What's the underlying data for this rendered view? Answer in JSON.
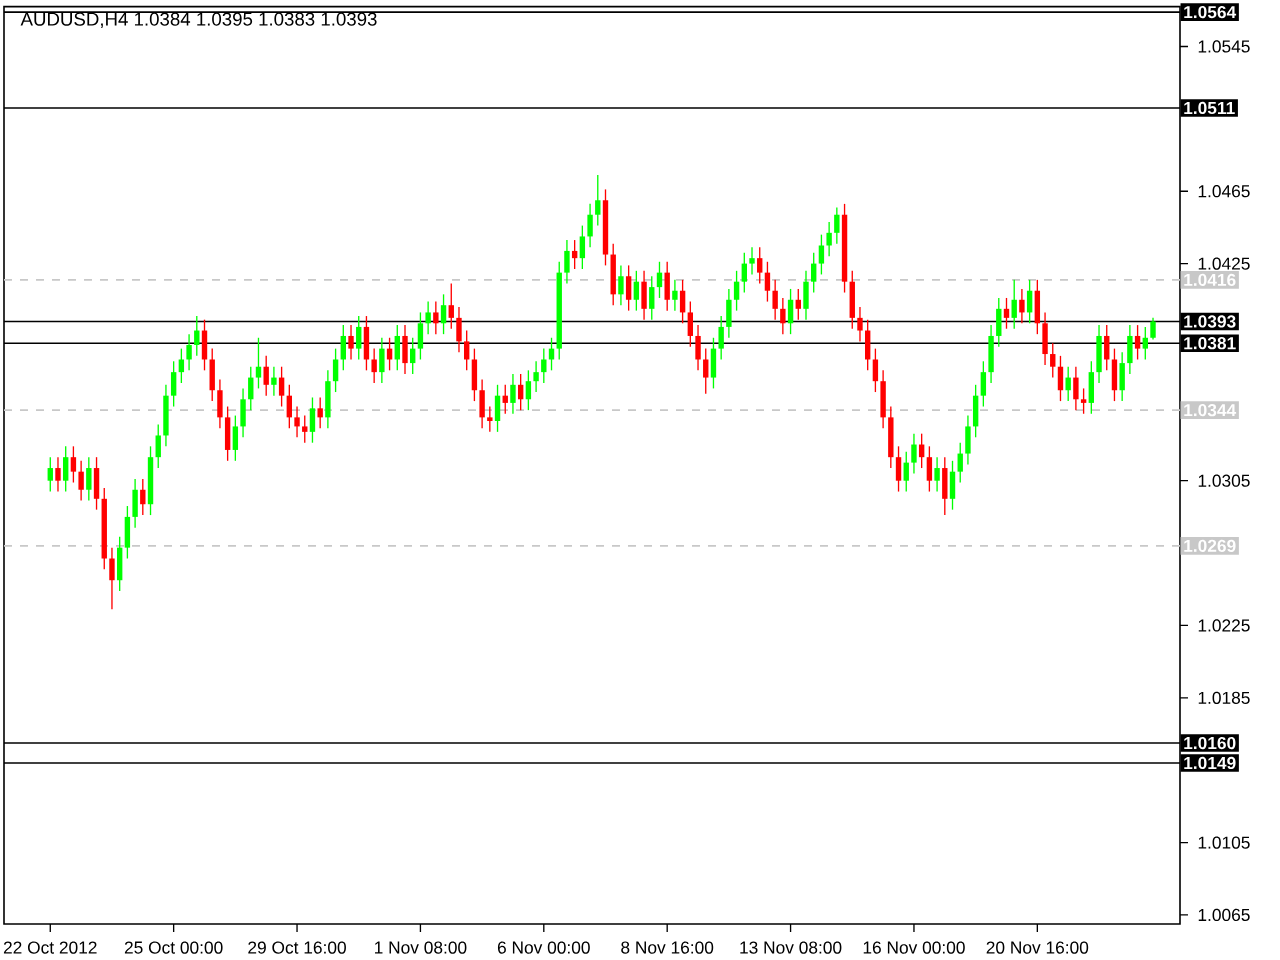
{
  "chart_data": {
    "type": "candlestick",
    "title": "AUDUSD,H4  1.0384 1.0395 1.0383 1.0393",
    "categories": [
      "22 Oct 2012",
      null,
      null,
      null,
      null,
      null,
      null,
      null,
      null,
      null,
      null,
      null,
      null,
      null,
      null,
      null,
      "25 Oct 00:00",
      null,
      null,
      null,
      null,
      null,
      null,
      null,
      null,
      null,
      null,
      null,
      null,
      null,
      null,
      null,
      "29 Oct 16:00",
      null,
      null,
      null,
      null,
      null,
      null,
      null,
      null,
      null,
      null,
      null,
      null,
      null,
      null,
      null,
      "1 Nov 08:00",
      null,
      null,
      null,
      null,
      null,
      null,
      null,
      null,
      null,
      null,
      null,
      null,
      null,
      null,
      null,
      "6 Nov 00:00",
      null,
      null,
      null,
      null,
      null,
      null,
      null,
      null,
      null,
      null,
      null,
      null,
      null,
      null,
      null,
      "8 Nov 16:00",
      null,
      null,
      null,
      null,
      null,
      null,
      null,
      null,
      null,
      null,
      null,
      null,
      null,
      null,
      null,
      "13 Nov 08:00",
      null,
      null,
      null,
      null,
      null,
      null,
      null,
      null,
      null,
      null,
      null,
      null,
      null,
      null,
      null,
      "16 Nov 00:00",
      null,
      null,
      null,
      null,
      null,
      null,
      null,
      null,
      null,
      null,
      null,
      null,
      null,
      null,
      null,
      "20 Nov 16:00",
      null,
      null,
      null,
      null,
      null,
      null,
      null,
      null,
      null,
      null,
      null,
      null,
      null,
      null,
      null
    ],
    "ohlc": [
      [
        1.0305,
        1.0318,
        1.0299,
        1.0312
      ],
      [
        1.0312,
        1.0318,
        1.0299,
        1.0305
      ],
      [
        1.0305,
        1.0324,
        1.0299,
        1.0318
      ],
      [
        1.0318,
        1.0324,
        1.0304,
        1.031
      ],
      [
        1.031,
        1.0316,
        1.0294,
        1.03
      ],
      [
        1.03,
        1.0318,
        1.0294,
        1.0312
      ],
      [
        1.0312,
        1.0318,
        1.0289,
        1.0295
      ],
      [
        1.0295,
        1.0301,
        1.0256,
        1.0262
      ],
      [
        1.0262,
        1.0268,
        1.0234,
        1.025
      ],
      [
        1.025,
        1.0274,
        1.0244,
        1.0268
      ],
      [
        1.0268,
        1.0291,
        1.0262,
        1.0285
      ],
      [
        1.0285,
        1.0306,
        1.0279,
        1.03
      ],
      [
        1.03,
        1.0306,
        1.0286,
        1.0292
      ],
      [
        1.0292,
        1.0324,
        1.0286,
        1.0318
      ],
      [
        1.0318,
        1.0336,
        1.0312,
        1.033
      ],
      [
        1.033,
        1.0358,
        1.0324,
        1.0352
      ],
      [
        1.0352,
        1.0371,
        1.0346,
        1.0365
      ],
      [
        1.0365,
        1.0378,
        1.0359,
        1.0372
      ],
      [
        1.0372,
        1.0386,
        1.0366,
        1.038
      ],
      [
        1.038,
        1.0396,
        1.0374,
        1.0388
      ],
      [
        1.0388,
        1.0394,
        1.0366,
        1.0372
      ],
      [
        1.0372,
        1.0378,
        1.0349,
        1.0355
      ],
      [
        1.0355,
        1.0361,
        1.0334,
        1.034
      ],
      [
        1.034,
        1.0346,
        1.0316,
        1.0322
      ],
      [
        1.0322,
        1.0341,
        1.0316,
        1.0335
      ],
      [
        1.0335,
        1.0356,
        1.0329,
        1.035
      ],
      [
        1.035,
        1.0368,
        1.0344,
        1.0362
      ],
      [
        1.0362,
        1.0384,
        1.0356,
        1.0368
      ],
      [
        1.0368,
        1.0374,
        1.0352,
        1.0358
      ],
      [
        1.0358,
        1.0368,
        1.0352,
        1.0362
      ],
      [
        1.0362,
        1.0368,
        1.0346,
        1.0352
      ],
      [
        1.0352,
        1.0358,
        1.0334,
        1.034
      ],
      [
        1.034,
        1.0346,
        1.0329,
        1.0335
      ],
      [
        1.0335,
        1.0341,
        1.0326,
        1.0332
      ],
      [
        1.0332,
        1.0351,
        1.0326,
        1.0345
      ],
      [
        1.0345,
        1.0351,
        1.0334,
        1.034
      ],
      [
        1.034,
        1.0366,
        1.0334,
        1.036
      ],
      [
        1.036,
        1.0378,
        1.0354,
        1.0372
      ],
      [
        1.0372,
        1.0391,
        1.0366,
        1.0385
      ],
      [
        1.0385,
        1.0391,
        1.0372,
        1.0378
      ],
      [
        1.0378,
        1.0396,
        1.0372,
        1.039
      ],
      [
        1.039,
        1.0396,
        1.0366,
        1.0372
      ],
      [
        1.0372,
        1.0378,
        1.0359,
        1.0365
      ],
      [
        1.0365,
        1.0384,
        1.0359,
        1.0378
      ],
      [
        1.0378,
        1.0384,
        1.0366,
        1.0372
      ],
      [
        1.0372,
        1.0391,
        1.0366,
        1.0385
      ],
      [
        1.0385,
        1.0391,
        1.0364,
        1.037
      ],
      [
        1.037,
        1.0384,
        1.0364,
        1.0378
      ],
      [
        1.0378,
        1.0398,
        1.0372,
        1.0392
      ],
      [
        1.0392,
        1.0404,
        1.0386,
        1.0398
      ],
      [
        1.0398,
        1.0404,
        1.0386,
        1.0392
      ],
      [
        1.0392,
        1.0408,
        1.0386,
        1.0402
      ],
      [
        1.0402,
        1.0414,
        1.0389,
        1.0395
      ],
      [
        1.0395,
        1.0401,
        1.0376,
        1.0382
      ],
      [
        1.0382,
        1.0388,
        1.0366,
        1.0372
      ],
      [
        1.0372,
        1.0378,
        1.0349,
        1.0355
      ],
      [
        1.0355,
        1.0361,
        1.0334,
        1.034
      ],
      [
        1.034,
        1.0346,
        1.0332,
        1.0338
      ],
      [
        1.0338,
        1.0358,
        1.0332,
        1.0352
      ],
      [
        1.0352,
        1.0358,
        1.0342,
        1.0348
      ],
      [
        1.0348,
        1.0364,
        1.0342,
        1.0358
      ],
      [
        1.0358,
        1.0364,
        1.0344,
        1.035
      ],
      [
        1.035,
        1.0366,
        1.0344,
        1.036
      ],
      [
        1.036,
        1.0371,
        1.0354,
        1.0365
      ],
      [
        1.0365,
        1.0378,
        1.0359,
        1.0372
      ],
      [
        1.0372,
        1.0384,
        1.0366,
        1.0378
      ],
      [
        1.0378,
        1.0426,
        1.0372,
        1.042
      ],
      [
        1.042,
        1.0438,
        1.0414,
        1.0432
      ],
      [
        1.0432,
        1.0438,
        1.0422,
        1.0428
      ],
      [
        1.0428,
        1.0446,
        1.0422,
        1.044
      ],
      [
        1.044,
        1.0458,
        1.0434,
        1.0452
      ],
      [
        1.0452,
        1.0474,
        1.0446,
        1.046
      ],
      [
        1.046,
        1.0466,
        1.0424,
        1.043
      ],
      [
        1.043,
        1.0436,
        1.0402,
        1.0408
      ],
      [
        1.0408,
        1.0424,
        1.0402,
        1.0418
      ],
      [
        1.0418,
        1.0424,
        1.0399,
        1.0405
      ],
      [
        1.0405,
        1.0421,
        1.0399,
        1.0415
      ],
      [
        1.0415,
        1.0421,
        1.0394,
        1.04
      ],
      [
        1.04,
        1.0418,
        1.0394,
        1.0412
      ],
      [
        1.0412,
        1.0426,
        1.0406,
        1.042
      ],
      [
        1.042,
        1.0426,
        1.0399,
        1.0405
      ],
      [
        1.0405,
        1.0416,
        1.0399,
        1.041
      ],
      [
        1.041,
        1.0416,
        1.0392,
        1.0398
      ],
      [
        1.0398,
        1.0404,
        1.0379,
        1.0385
      ],
      [
        1.0385,
        1.0391,
        1.0366,
        1.0372
      ],
      [
        1.0372,
        1.0378,
        1.0353,
        1.0362
      ],
      [
        1.0362,
        1.0384,
        1.0356,
        1.0378
      ],
      [
        1.0378,
        1.0396,
        1.0372,
        1.039
      ],
      [
        1.039,
        1.0411,
        1.0384,
        1.0405
      ],
      [
        1.0405,
        1.0421,
        1.0399,
        1.0415
      ],
      [
        1.0415,
        1.0431,
        1.0409,
        1.0425
      ],
      [
        1.0425,
        1.0434,
        1.0419,
        1.0428
      ],
      [
        1.0428,
        1.0434,
        1.0414,
        1.042
      ],
      [
        1.042,
        1.0426,
        1.0404,
        1.041
      ],
      [
        1.041,
        1.0416,
        1.0394,
        1.04
      ],
      [
        1.04,
        1.0406,
        1.0386,
        1.0392
      ],
      [
        1.0392,
        1.0411,
        1.0386,
        1.0405
      ],
      [
        1.0405,
        1.0411,
        1.0394,
        1.04
      ],
      [
        1.04,
        1.0421,
        1.0394,
        1.0415
      ],
      [
        1.0415,
        1.0431,
        1.0409,
        1.0425
      ],
      [
        1.0425,
        1.0441,
        1.0419,
        1.0435
      ],
      [
        1.0435,
        1.0448,
        1.0429,
        1.0442
      ],
      [
        1.0442,
        1.0456,
        1.0436,
        1.0452
      ],
      [
        1.0452,
        1.0458,
        1.0409,
        1.0415
      ],
      [
        1.0415,
        1.0421,
        1.0389,
        1.0395
      ],
      [
        1.0395,
        1.0401,
        1.0382,
        1.0388
      ],
      [
        1.0388,
        1.0394,
        1.0366,
        1.0372
      ],
      [
        1.0372,
        1.0378,
        1.0354,
        1.036
      ],
      [
        1.036,
        1.0366,
        1.0334,
        1.034
      ],
      [
        1.034,
        1.0346,
        1.0312,
        1.0318
      ],
      [
        1.0318,
        1.0324,
        1.0299,
        1.0305
      ],
      [
        1.0305,
        1.0321,
        1.0299,
        1.0315
      ],
      [
        1.0315,
        1.0331,
        1.0309,
        1.0325
      ],
      [
        1.0325,
        1.0331,
        1.0312,
        1.0318
      ],
      [
        1.0318,
        1.0324,
        1.0299,
        1.0305
      ],
      [
        1.0305,
        1.0318,
        1.0299,
        1.0312
      ],
      [
        1.0312,
        1.0318,
        1.0286,
        1.0295
      ],
      [
        1.0295,
        1.0316,
        1.0289,
        1.031
      ],
      [
        1.031,
        1.0326,
        1.0304,
        1.032
      ],
      [
        1.032,
        1.0341,
        1.0314,
        1.0335
      ],
      [
        1.0335,
        1.0358,
        1.0329,
        1.0352
      ],
      [
        1.0352,
        1.0371,
        1.0346,
        1.0365
      ],
      [
        1.0365,
        1.0391,
        1.0359,
        1.0385
      ],
      [
        1.0385,
        1.0406,
        1.0379,
        1.04
      ],
      [
        1.04,
        1.0406,
        1.0389,
        1.0395
      ],
      [
        1.0395,
        1.0416,
        1.0389,
        1.0405
      ],
      [
        1.0405,
        1.0411,
        1.0392,
        1.0398
      ],
      [
        1.0398,
        1.0416,
        1.0392,
        1.041
      ],
      [
        1.041,
        1.0416,
        1.0386,
        1.0392
      ],
      [
        1.0392,
        1.0398,
        1.0369,
        1.0375
      ],
      [
        1.0375,
        1.0381,
        1.0362,
        1.0368
      ],
      [
        1.0368,
        1.0374,
        1.0349,
        1.0355
      ],
      [
        1.0355,
        1.0368,
        1.0349,
        1.0362
      ],
      [
        1.0362,
        1.0368,
        1.0344,
        1.035
      ],
      [
        1.035,
        1.0356,
        1.0342,
        1.0348
      ],
      [
        1.0348,
        1.0371,
        1.0342,
        1.0365
      ],
      [
        1.0365,
        1.0391,
        1.0359,
        1.0385
      ],
      [
        1.0385,
        1.0391,
        1.0366,
        1.0372
      ],
      [
        1.0372,
        1.0378,
        1.0349,
        1.0355
      ],
      [
        1.0355,
        1.0376,
        1.0349,
        1.037
      ],
      [
        1.037,
        1.0391,
        1.0364,
        1.0385
      ],
      [
        1.0385,
        1.0391,
        1.0372,
        1.0378
      ],
      [
        1.0378,
        1.039,
        1.0372,
        1.0384
      ],
      [
        1.0384,
        1.0395,
        1.0383,
        1.0393
      ]
    ],
    "ylim": [
      1.006,
      1.0567
    ],
    "yticks": [
      1.0065,
      1.0105,
      1.0185,
      1.0225,
      1.0305,
      1.0425,
      1.0465,
      1.0545
    ],
    "ref_lines": [
      {
        "axis": "y",
        "value": 1.0564,
        "label": "1.0564",
        "color": "#000000",
        "line_style": "solid"
      },
      {
        "axis": "y",
        "value": 1.0511,
        "label": "1.0511",
        "color": "#000000",
        "line_style": "solid"
      },
      {
        "axis": "y",
        "value": 1.0416,
        "label": "1.0416",
        "color": "#c8c8c8",
        "line_style": "dashed"
      },
      {
        "axis": "y",
        "value": 1.0393,
        "label": "1.0393",
        "color": "#000000",
        "line_style": "solid"
      },
      {
        "axis": "y",
        "value": 1.0381,
        "label": "1.0381",
        "color": "#000000",
        "line_style": "solid"
      },
      {
        "axis": "y",
        "value": 1.0344,
        "label": "1.0344",
        "color": "#c8c8c8",
        "line_style": "dashed"
      },
      {
        "axis": "y",
        "value": 1.0269,
        "label": "1.0269",
        "color": "#c8c8c8",
        "line_style": "dashed"
      },
      {
        "axis": "y",
        "value": 1.016,
        "label": "1.0160",
        "color": "#000000",
        "line_style": "solid"
      },
      {
        "axis": "y",
        "value": 1.0149,
        "label": "1.0149",
        "color": "#000000",
        "line_style": "solid"
      }
    ]
  }
}
